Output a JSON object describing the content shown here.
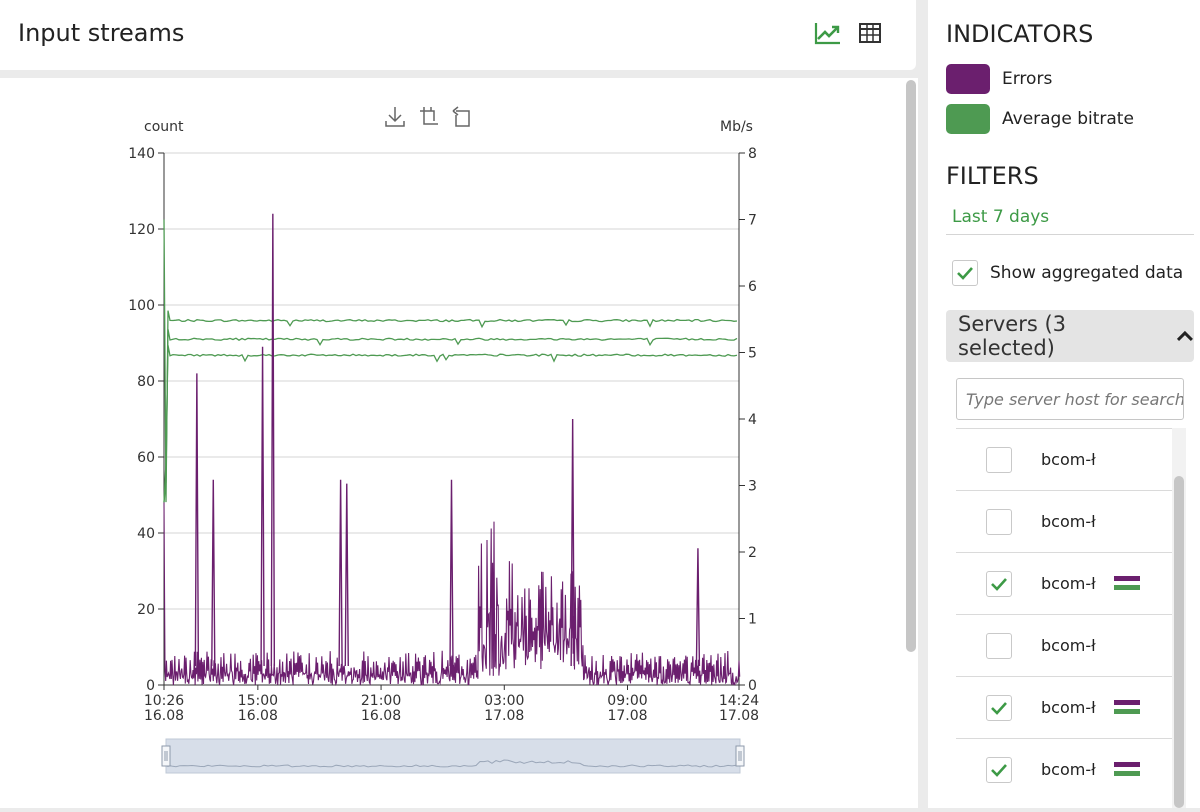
{
  "page": {
    "title": "Input streams"
  },
  "toolbar": {
    "chart_view_icon": "line-chart-icon",
    "table_view_icon": "table-icon"
  },
  "chart_tools": [
    "download-icon",
    "zoom-select-icon",
    "zoom-reset-icon"
  ],
  "colors": {
    "errors": "#6b1f6e",
    "bitrate": "#4e9a52",
    "accent": "#3d9a46"
  },
  "chart_data": {
    "type": "line",
    "y_left": {
      "label": "count",
      "min": 0,
      "max": 140,
      "ticks": [
        "0",
        "20",
        "40",
        "60",
        "80",
        "100",
        "120",
        "140"
      ]
    },
    "y_right": {
      "label": "Mb/s",
      "min": 0,
      "max": 8,
      "ticks": [
        "0",
        "1",
        "2",
        "3",
        "4",
        "5",
        "6",
        "7",
        "8"
      ]
    },
    "x_ticks": [
      {
        "time": "10:26",
        "date": "16.08"
      },
      {
        "time": "15:00",
        "date": "16.08"
      },
      {
        "time": "21:00",
        "date": "16.08"
      },
      {
        "time": "03:00",
        "date": "17.08"
      },
      {
        "time": "09:00",
        "date": "17.08"
      },
      {
        "time": "14:24",
        "date": "17.08"
      }
    ],
    "x_hours": [
      0,
      4.57,
      10.57,
      16.57,
      22.57,
      28
    ],
    "grid": true,
    "series": [
      {
        "name": "Errors",
        "axis": "left",
        "baseline_range": [
          0,
          15
        ],
        "spikes": [
          {
            "h": 1.6,
            "v": 82
          },
          {
            "h": 2.4,
            "v": 54
          },
          {
            "h": 4.8,
            "v": 89
          },
          {
            "h": 5.3,
            "v": 124
          },
          {
            "h": 8.6,
            "v": 54
          },
          {
            "h": 8.9,
            "v": 53
          },
          {
            "h": 14.0,
            "v": 54
          },
          {
            "h": 19.9,
            "v": 70
          },
          {
            "h": 26.0,
            "v": 36
          }
        ],
        "dense_bands": [
          {
            "from": 15.3,
            "to": 17.0,
            "range": [
              2,
              43
            ]
          },
          {
            "from": 17.0,
            "to": 20.4,
            "range": [
              4,
              30
            ]
          }
        ]
      },
      {
        "name": "Average bitrate",
        "axis": "right",
        "lines": [
          {
            "value": 5.48
          },
          {
            "value": 5.2
          },
          {
            "value": 4.96
          }
        ],
        "initial_dip": 2.75
      }
    ]
  },
  "indicators": {
    "title": "INDICATORS",
    "items": [
      {
        "label": "Errors",
        "color": "#6b1f6e"
      },
      {
        "label": "Average bitrate",
        "color": "#4e9a52"
      }
    ]
  },
  "filters": {
    "title": "FILTERS",
    "range": "Last 7 days",
    "aggregated_label": "Show aggregated data",
    "aggregated_checked": true
  },
  "servers": {
    "label": "Servers (3 selected)",
    "search_placeholder": "Type server host for search",
    "items": [
      {
        "label": "bcom-ł",
        "checked": false
      },
      {
        "label": "bcom-ł",
        "checked": false
      },
      {
        "label": "bcom-ł",
        "checked": true
      },
      {
        "label": "bcom-ł",
        "checked": false
      },
      {
        "label": "bcom-ł",
        "checked": true
      },
      {
        "label": "bcom-ł",
        "checked": true
      }
    ]
  }
}
